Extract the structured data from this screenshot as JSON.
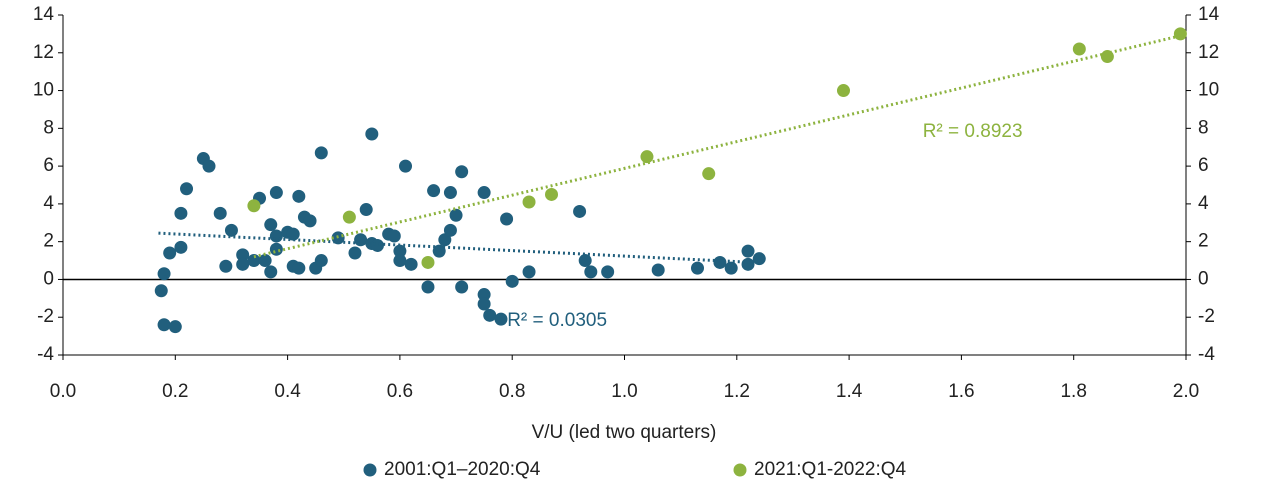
{
  "chart_data": {
    "type": "scatter",
    "x_label": "V/U (led two quarters)",
    "xlim": [
      0,
      2
    ],
    "xticks": [
      {
        "value": 0,
        "label": "0.0"
      },
      0.2,
      0.4,
      0.6,
      0.8,
      {
        "value": 1,
        "label": "1.0"
      },
      1.2,
      1.4,
      1.6,
      1.8,
      {
        "value": 2,
        "label": "2.0"
      }
    ],
    "ylim": [
      -4,
      14
    ],
    "yticks": [
      -4,
      -2,
      0,
      2,
      4,
      6,
      8,
      10,
      12,
      14
    ],
    "y2lim": [
      -4,
      14
    ],
    "y2ticks": [
      -4,
      -2,
      0,
      2,
      4,
      6,
      8,
      10,
      12,
      14
    ],
    "legend": "bottom",
    "series": [
      {
        "name": "2001:Q1–2020:Q4",
        "color": "#215f7d",
        "x": [
          0.175,
          0.18,
          0.2,
          0.18,
          0.19,
          0.21,
          0.21,
          0.22,
          0.25,
          0.26,
          0.28,
          0.3,
          0.29,
          0.32,
          0.32,
          0.34,
          0.35,
          0.36,
          0.37,
          0.37,
          0.38,
          0.38,
          0.38,
          0.4,
          0.41,
          0.41,
          0.42,
          0.42,
          0.43,
          0.44,
          0.45,
          0.46,
          0.46,
          0.49,
          0.52,
          0.53,
          0.54,
          0.55,
          0.55,
          0.56,
          0.58,
          0.59,
          0.6,
          0.6,
          0.61,
          0.62,
          0.65,
          0.66,
          0.67,
          0.68,
          0.69,
          0.69,
          0.7,
          0.71,
          0.71,
          0.75,
          0.75,
          0.75,
          0.76,
          0.78,
          0.79,
          0.8,
          0.83,
          0.92,
          0.93,
          0.94,
          0.97,
          1.06,
          1.13,
          1.17,
          1.19,
          1.22,
          1.22,
          1.24
        ],
        "values": [
          -0.6,
          -2.4,
          -2.5,
          0.3,
          1.4,
          1.7,
          3.5,
          4.8,
          6.4,
          6.0,
          3.5,
          2.6,
          0.7,
          1.3,
          0.8,
          1.0,
          4.3,
          1.0,
          0.4,
          2.9,
          2.3,
          1.6,
          4.6,
          2.5,
          2.4,
          0.7,
          0.6,
          4.4,
          3.3,
          3.1,
          0.6,
          1.0,
          6.7,
          2.2,
          1.4,
          2.1,
          3.7,
          1.9,
          7.7,
          1.8,
          2.4,
          2.3,
          1.5,
          1.0,
          6.0,
          0.8,
          -0.4,
          4.7,
          1.5,
          2.1,
          2.6,
          4.6,
          3.4,
          5.7,
          -0.4,
          4.6,
          -0.8,
          -1.3,
          -1.9,
          -2.1,
          3.2,
          -0.1,
          0.4,
          3.6,
          1.0,
          0.4,
          0.4,
          0.5,
          0.6,
          0.9,
          0.6,
          1.5,
          0.8,
          1.1
        ],
        "trendline": {
          "x": [
            0.17,
            1.23
          ],
          "values": [
            2.45,
            0.9
          ]
        },
        "r2_label": "R² = 0.0305"
      },
      {
        "name": "2021:Q1-2022:Q4",
        "color": "#8db33f",
        "x": [
          0.34,
          0.51,
          0.65,
          0.83,
          0.87,
          1.04,
          1.15,
          1.39,
          1.81,
          1.86,
          1.99
        ],
        "values": [
          3.9,
          3.3,
          0.9,
          4.1,
          4.5,
          6.5,
          5.6,
          10.0,
          12.2,
          11.8,
          13.0
        ],
        "trendline": {
          "x": [
            0.34,
            1.99
          ],
          "values": [
            1.2,
            12.9
          ]
        },
        "r2_label": "R² = 0.8923"
      }
    ]
  }
}
